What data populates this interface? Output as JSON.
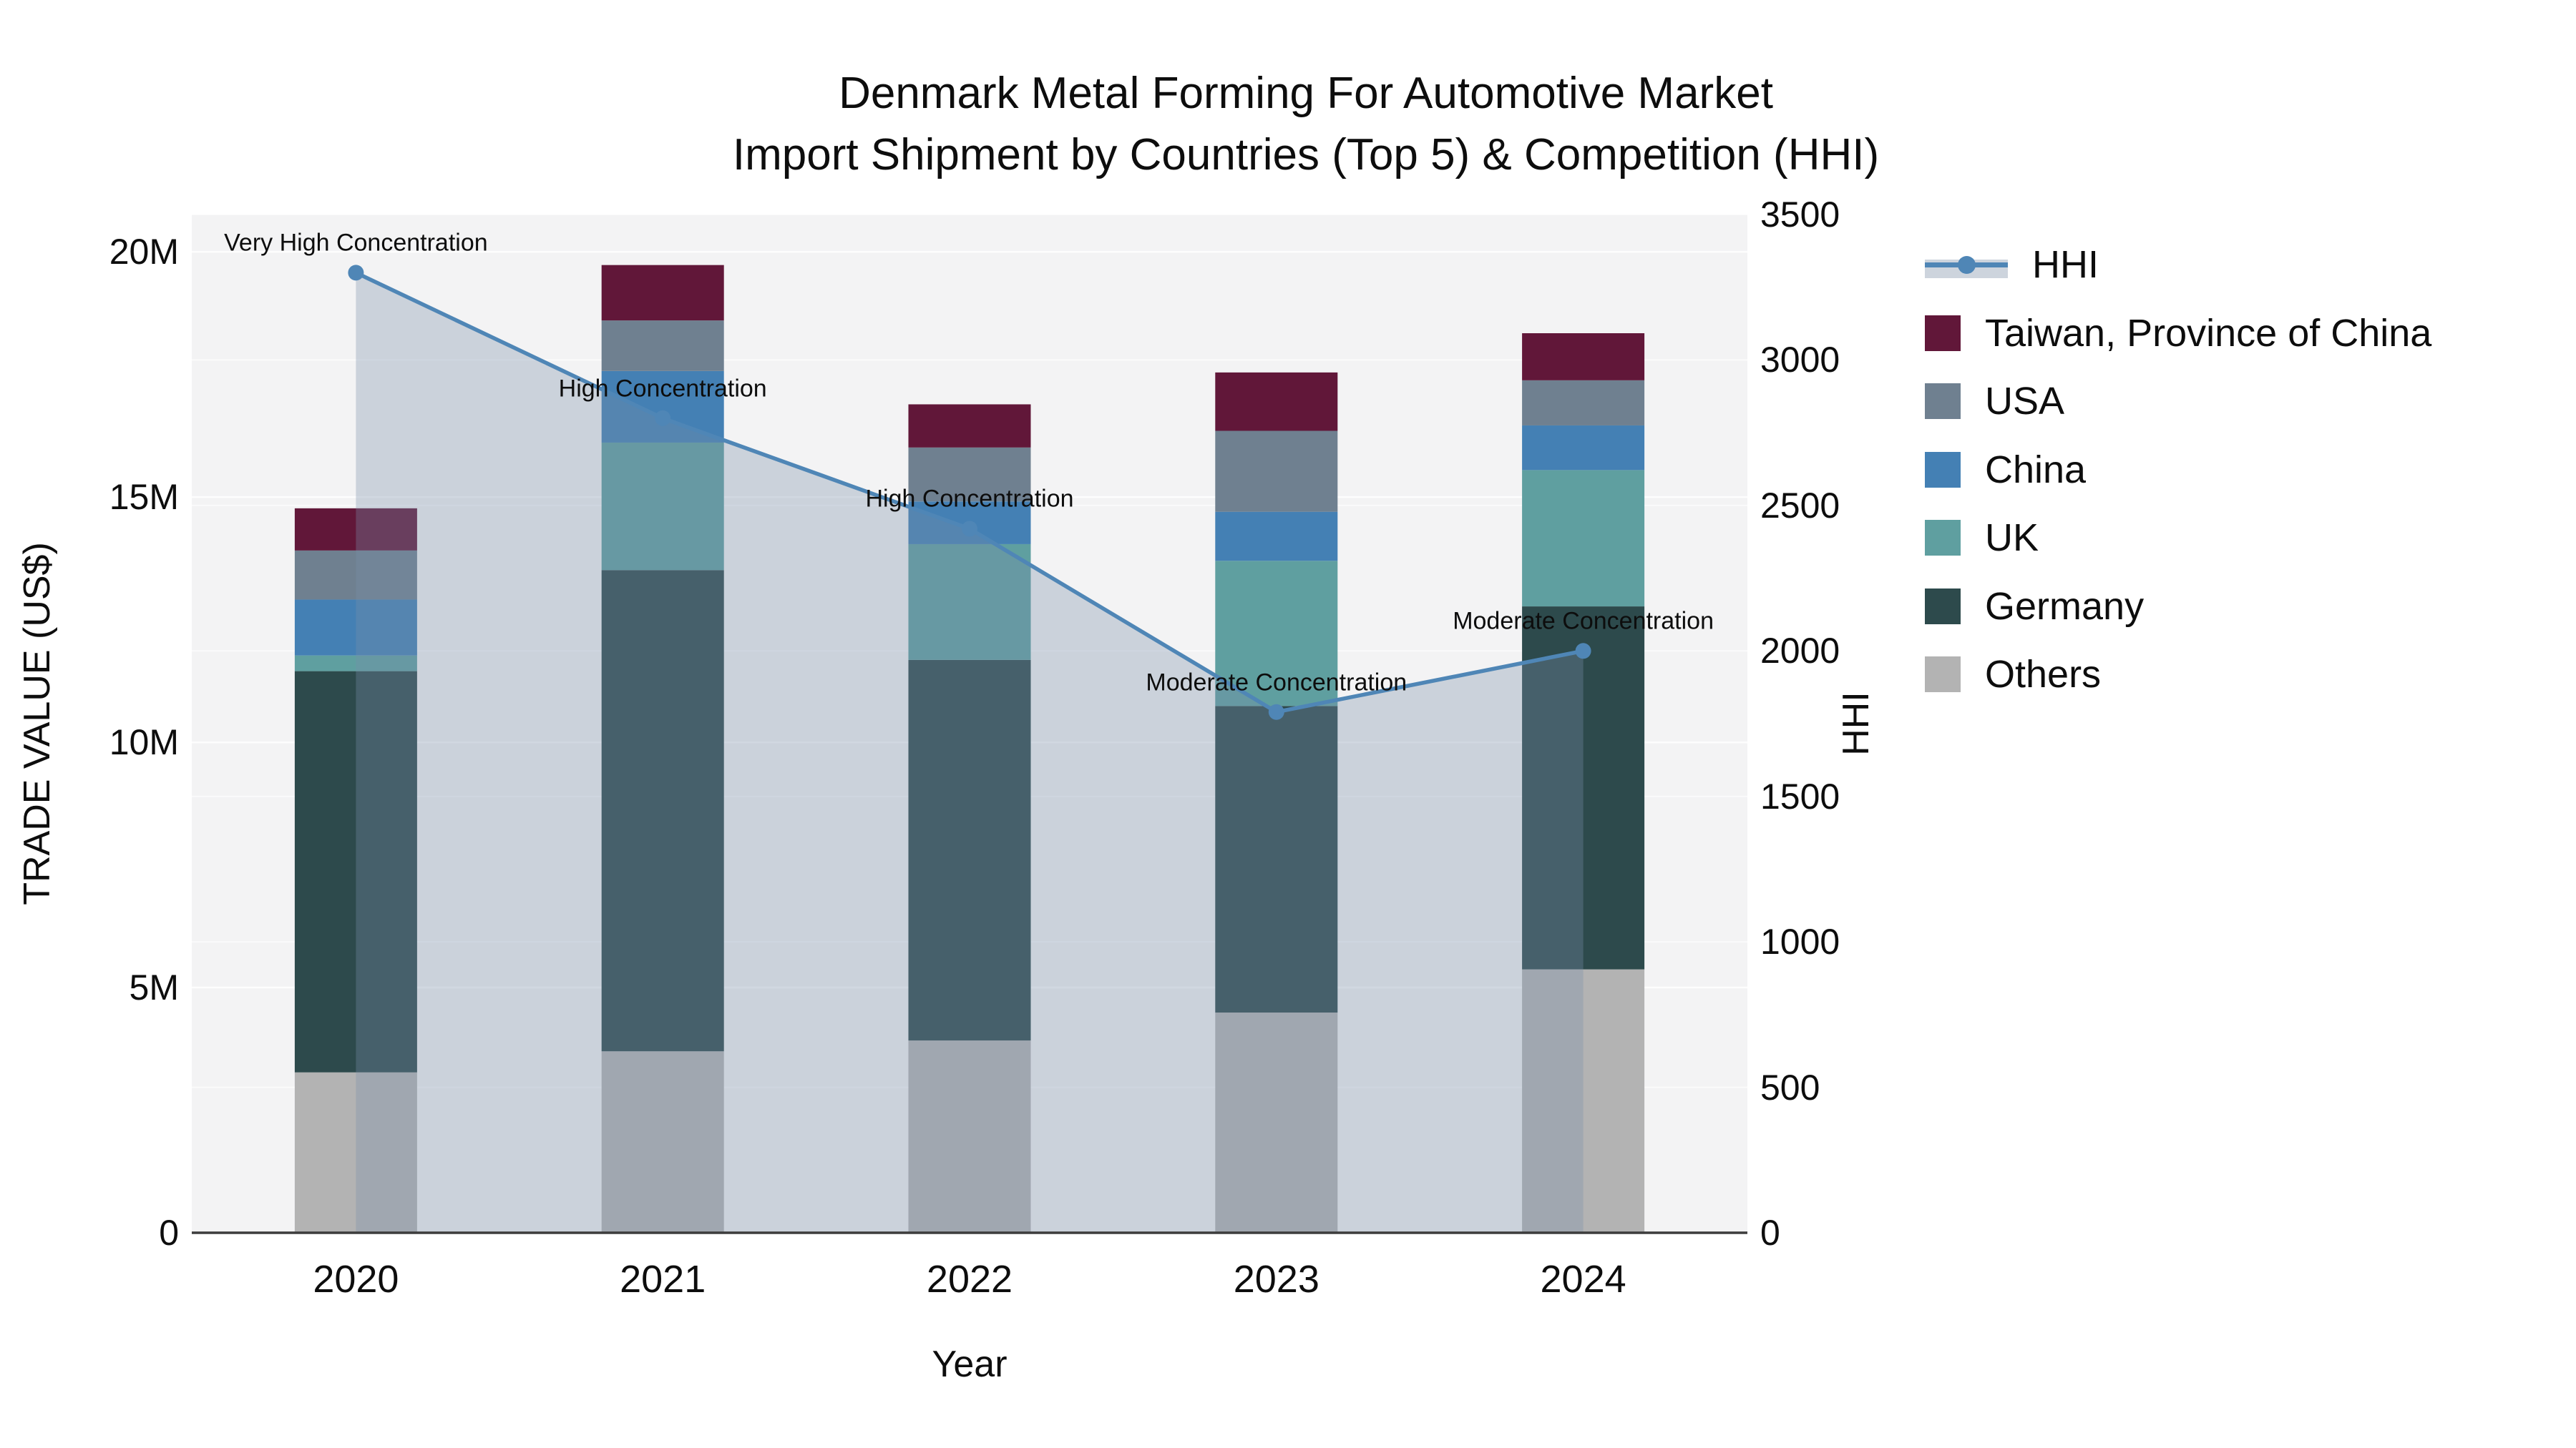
{
  "title": {
    "line1": "Denmark Metal Forming For Automotive Market",
    "line2": "Import Shipment by Countries (Top 5) & Competition (HHI)"
  },
  "chart_data": {
    "type": "bar+line",
    "title": "Denmark Metal Forming For Automotive Market Import Shipment by Countries (Top 5) & Competition (HHI)",
    "categories": [
      "2020",
      "2021",
      "2022",
      "2023",
      "2024"
    ],
    "bar_unit": "M US$",
    "series": [
      {
        "name": "Taiwan, Province of China",
        "color": "#611739",
        "values": [
          0.86,
          1.13,
          0.88,
          1.19,
          0.96
        ]
      },
      {
        "name": "USA",
        "color": "#6f8090",
        "values": [
          1.0,
          1.03,
          1.1,
          1.65,
          0.92
        ]
      },
      {
        "name": "China",
        "color": "#4480b4",
        "values": [
          1.14,
          1.46,
          0.87,
          1.0,
          0.91
        ]
      },
      {
        "name": "UK",
        "color": "#5f9fa0",
        "values": [
          0.32,
          2.6,
          2.36,
          2.96,
          2.78
        ]
      },
      {
        "name": "Germany",
        "color": "#2d4a4c",
        "values": [
          8.18,
          9.81,
          7.76,
          6.25,
          7.4
        ]
      },
      {
        "name": "Others",
        "color": "#b3b3b3",
        "values": [
          3.27,
          3.7,
          3.92,
          4.49,
          5.37
        ]
      }
    ],
    "stack_note": "bars stacked bottom-to-top: Others, Germany, UK, China, USA, Taiwan",
    "hhi_line": {
      "label": "HHI",
      "color": "#4f86b6",
      "fill_color": "rgba(122,143,169,0.33)",
      "marker_color": "#4f86b6",
      "values": [
        3300,
        2800,
        2420,
        1790,
        2000
      ]
    },
    "annotations": [
      "Very High Concentration",
      "High Concentration",
      "High Concentration",
      "Moderate Concentration",
      "Moderate Concentration"
    ],
    "axes": {
      "x": {
        "title": "Year"
      },
      "left": {
        "title": "TRADE VALUE (US$)",
        "tick_labels": [
          "0",
          "5M",
          "10M",
          "15M",
          "20M"
        ],
        "tick_values": [
          0,
          5,
          10,
          15,
          20
        ],
        "range": [
          0,
          20.76
        ]
      },
      "right": {
        "title": "HHI",
        "tick_values": [
          0,
          500,
          1000,
          1500,
          2000,
          2500,
          3000,
          3500
        ],
        "range": [
          0,
          3500
        ]
      }
    },
    "legend_position": "right",
    "grid": true
  },
  "colors": {
    "plot_bg": "#f3f3f4",
    "gridline": "#ffffff",
    "axis_line": "#3c3c3c",
    "text": "#0d0d0d"
  }
}
